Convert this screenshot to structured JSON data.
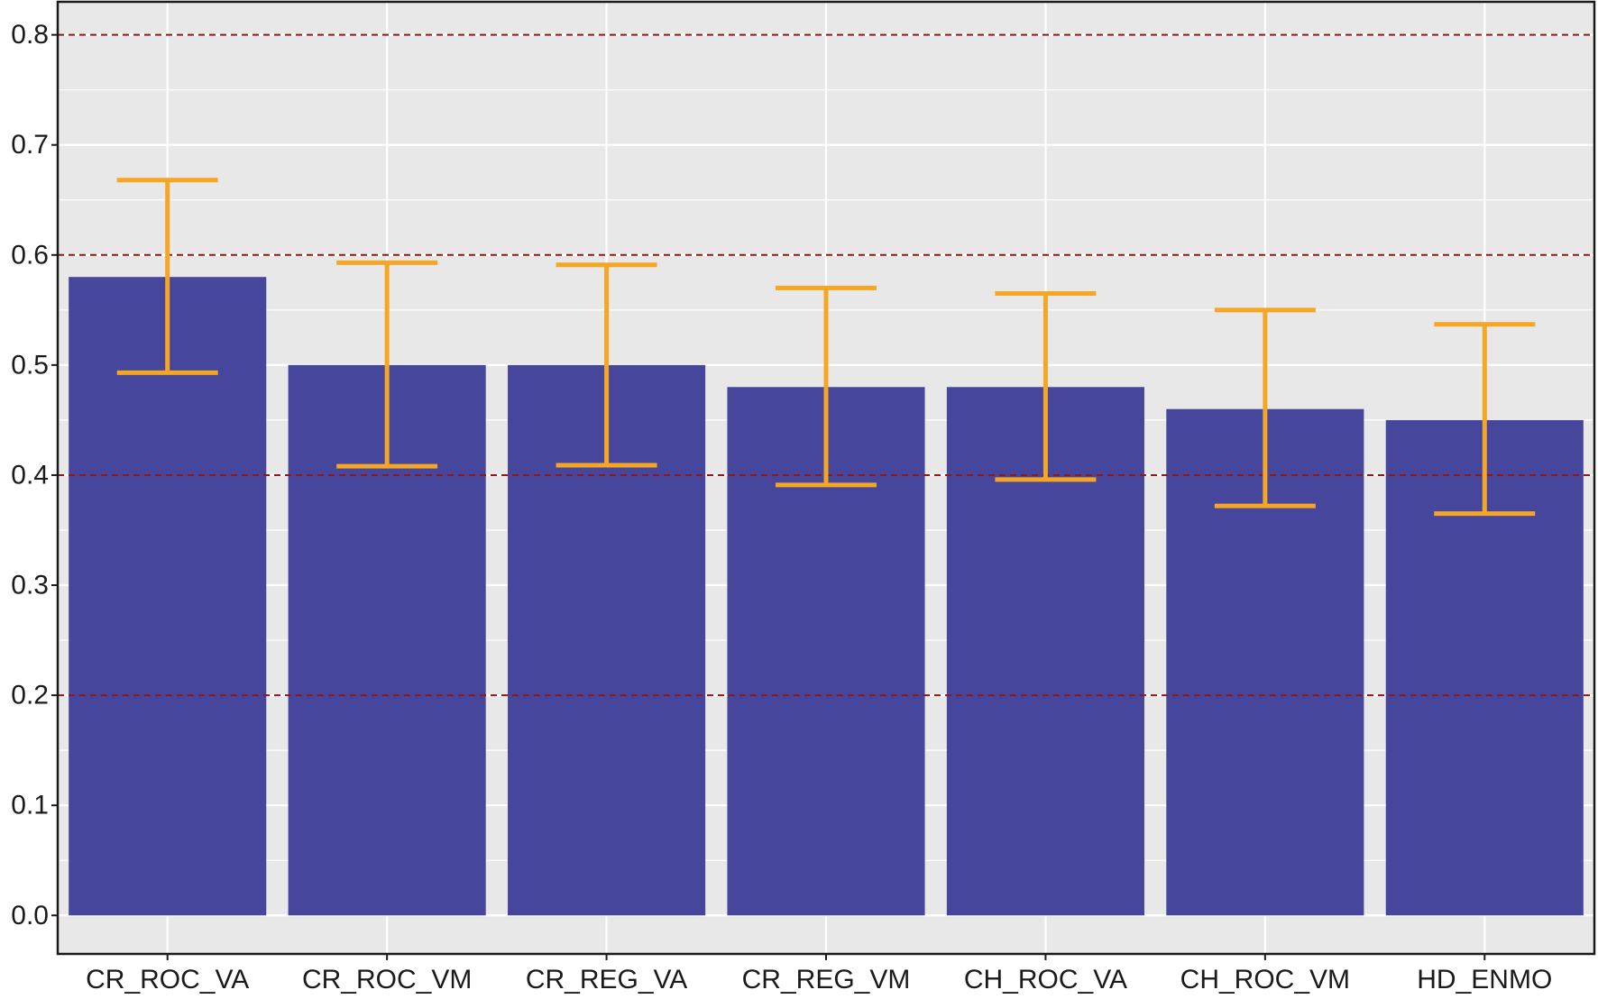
{
  "chart_data": {
    "type": "bar",
    "title": "",
    "xlabel": "",
    "ylabel": "",
    "categories": [
      "CR_ROC_VA",
      "CR_ROC_VM",
      "CR_REG_VA",
      "CR_REG_VM",
      "CH_ROC_VA",
      "CH_ROC_VM",
      "HD_ENMO"
    ],
    "values": [
      0.58,
      0.5,
      0.5,
      0.48,
      0.48,
      0.46,
      0.45
    ],
    "error_low": [
      0.493,
      0.408,
      0.409,
      0.391,
      0.396,
      0.372,
      0.365
    ],
    "error_high": [
      0.668,
      0.593,
      0.591,
      0.57,
      0.565,
      0.55,
      0.537
    ],
    "ylim": [
      -0.035,
      0.83
    ],
    "yticks": [
      0.0,
      0.1,
      0.2,
      0.3,
      0.4,
      0.5,
      0.6,
      0.7,
      0.8
    ],
    "ytick_labels": [
      "0.0",
      "0.1",
      "0.2",
      "0.3",
      "0.4",
      "0.5",
      "0.6",
      "0.7",
      "0.8"
    ],
    "reference_lines": [
      0.2,
      0.4,
      0.6,
      0.8
    ],
    "grid": true,
    "legend": "none",
    "colors": {
      "bar": "#46469c",
      "error_bar": "#f5a623",
      "reference_line": "#8b1a1a",
      "panel_background": "#e8e8e8",
      "grid": "#ffffff"
    }
  }
}
